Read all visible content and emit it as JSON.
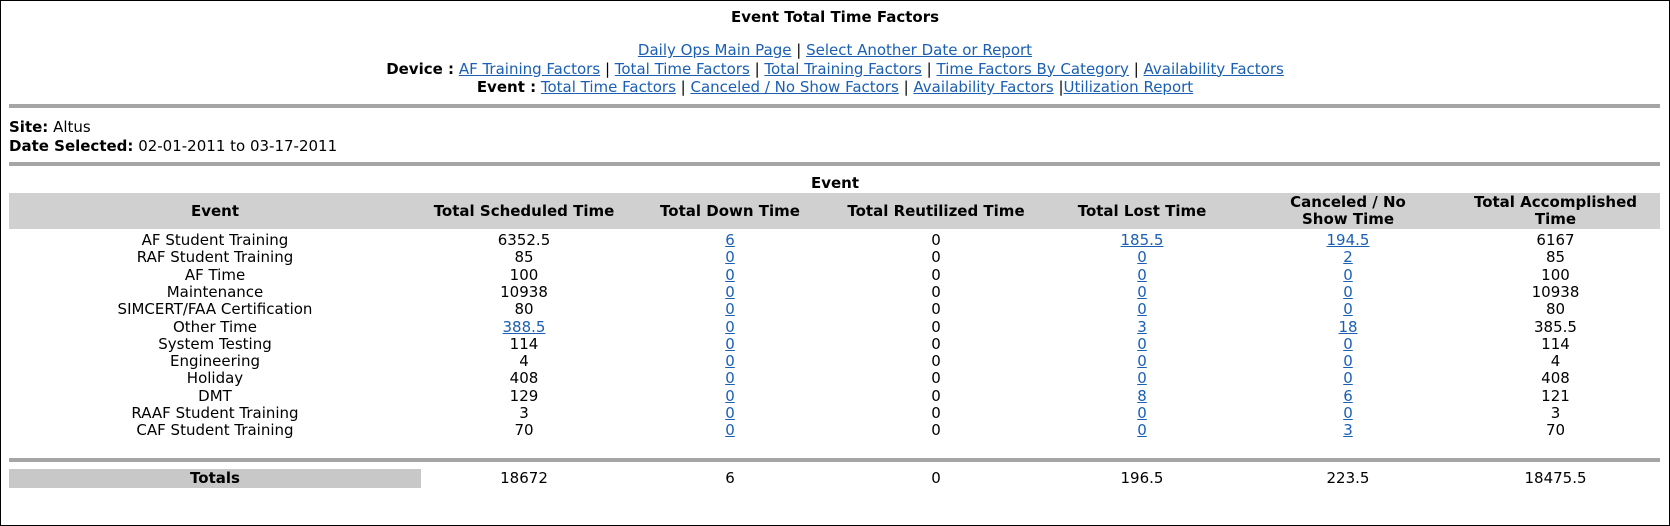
{
  "title": "Event Total Time Factors",
  "nav": {
    "main_links": [
      "Daily Ops Main Page",
      "Select Another Date or Report"
    ],
    "device_label": "Device :",
    "device_links": [
      "AF Training Factors",
      "Total Time Factors",
      "Total Training Factors",
      "Time Factors By Category",
      "Availability Factors"
    ],
    "event_label": "Event :",
    "event_links": [
      "Total Time Factors",
      "Canceled / No Show Factors",
      "Availability Factors",
      "Utilization Report"
    ]
  },
  "info": {
    "site_label": "Site:",
    "site_value": "Altus",
    "date_label": "Date Selected:",
    "date_value": "02-01-2011 to 03-17-2011"
  },
  "table": {
    "caption": "Event",
    "headers": [
      "Event",
      "Total Scheduled Time",
      "Total Down Time",
      "Total Reutilized Time",
      "Total Lost Time",
      "Canceled / No Show Time",
      "Total Accomplished Time"
    ],
    "rows": [
      {
        "event": "AF Student Training",
        "scheduled": "6352.5",
        "down": "6",
        "reutilized": "0",
        "lost": "185.5",
        "canceled": "194.5",
        "accomplished": "6167"
      },
      {
        "event": "RAF Student Training",
        "scheduled": "85",
        "down": "0",
        "reutilized": "0",
        "lost": "0",
        "canceled": "2",
        "accomplished": "85"
      },
      {
        "event": "AF Time",
        "scheduled": "100",
        "down": "0",
        "reutilized": "0",
        "lost": "0",
        "canceled": "0",
        "accomplished": "100"
      },
      {
        "event": "Maintenance",
        "scheduled": "10938",
        "down": "0",
        "reutilized": "0",
        "lost": "0",
        "canceled": "0",
        "accomplished": "10938"
      },
      {
        "event": "SIMCERT/FAA Certification",
        "scheduled": "80",
        "down": "0",
        "reutilized": "0",
        "lost": "0",
        "canceled": "0",
        "accomplished": "80"
      },
      {
        "event": "Other Time",
        "scheduled": "388.5",
        "down": "0",
        "reutilized": "0",
        "lost": "3",
        "canceled": "18",
        "accomplished": "385.5",
        "scheduled_link": true
      },
      {
        "event": "System Testing",
        "scheduled": "114",
        "down": "0",
        "reutilized": "0",
        "lost": "0",
        "canceled": "0",
        "accomplished": "114"
      },
      {
        "event": "Engineering",
        "scheduled": "4",
        "down": "0",
        "reutilized": "0",
        "lost": "0",
        "canceled": "0",
        "accomplished": "4"
      },
      {
        "event": "Holiday",
        "scheduled": "408",
        "down": "0",
        "reutilized": "0",
        "lost": "0",
        "canceled": "0",
        "accomplished": "408"
      },
      {
        "event": "DMT",
        "scheduled": "129",
        "down": "0",
        "reutilized": "0",
        "lost": "8",
        "canceled": "6",
        "accomplished": "121"
      },
      {
        "event": "RAAF Student Training",
        "scheduled": "3",
        "down": "0",
        "reutilized": "0",
        "lost": "0",
        "canceled": "0",
        "accomplished": "3"
      },
      {
        "event": "CAF Student Training",
        "scheduled": "70",
        "down": "0",
        "reutilized": "0",
        "lost": "0",
        "canceled": "3",
        "accomplished": "70"
      }
    ],
    "totals": {
      "label": "Totals",
      "scheduled": "18672",
      "down": "6",
      "reutilized": "0",
      "lost": "196.5",
      "canceled": "223.5",
      "accomplished": "18475.5"
    }
  },
  "colors": {
    "link": "#1a5fb4",
    "header_bg": "#d0d0d0",
    "rule": "#a5a5a5"
  }
}
